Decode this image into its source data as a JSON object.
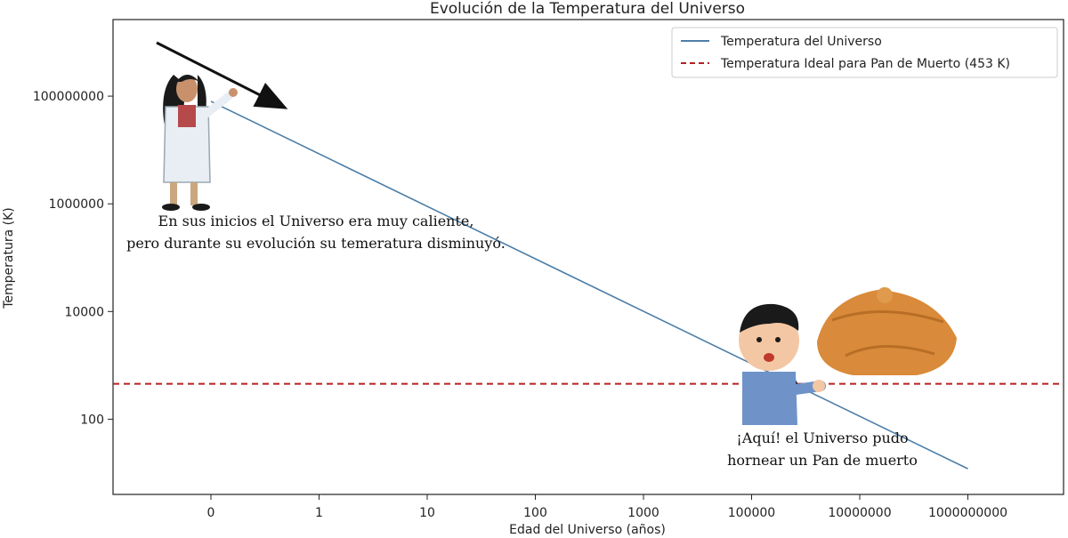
{
  "chart_data": {
    "type": "line",
    "title": "Evolución de la Temperatura del Universo",
    "xlabel": "Edad del Universo (años)",
    "ylabel": "Temperatura (K)",
    "y_scale": "log",
    "ylim": [
      10,
      10000000000
    ],
    "grid": false,
    "legend_position": "top-right",
    "x_tick_labels": [
      "0",
      "1",
      "10",
      "100",
      "1000",
      "100000",
      "10000000",
      "1000000000"
    ],
    "y_ticks": [
      100,
      10000,
      1000000,
      100000000
    ],
    "y_tick_labels": [
      "100",
      "10000",
      "1000000",
      "100000000"
    ],
    "series": [
      {
        "name": "Temperatura del Universo",
        "color": "#4e7fa8",
        "style": "solid",
        "x": [
          "0",
          "1000000000"
        ],
        "y": [
          80000000,
          12
        ]
      },
      {
        "name": "Temperatura Ideal para Pan de Muerto (453 K)",
        "color": "#b22222",
        "style": "dashed",
        "y": 453
      }
    ],
    "annotations": [
      {
        "lines": [
          "En sus inicios el Universo era muy caliente,",
          "pero durante su evolución su temeratura disminuyó."
        ],
        "target": "early-universe",
        "icon": "scientist-woman-pointing-icon"
      },
      {
        "lines": [
          "¡Aquí! el Universo pudo",
          "hornear un Pan de muerto"
        ],
        "target": "intersection",
        "icon": "boy-pointing-icon",
        "extra_icon": "pan-de-muerto-bread-icon"
      }
    ]
  }
}
